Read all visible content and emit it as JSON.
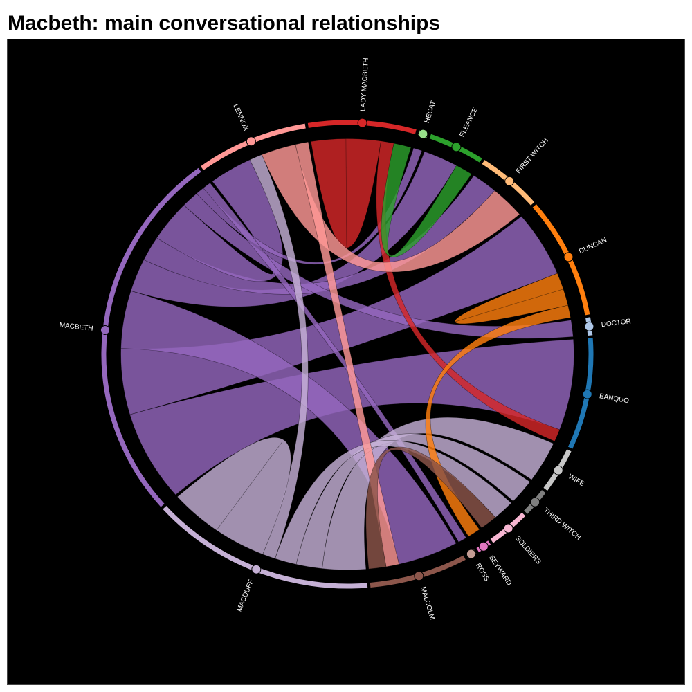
{
  "title": "Macbeth: main conversational relationships",
  "colors": {
    "background": "#000000",
    "title_text": "#000000",
    "label_text": "#ffffff"
  },
  "chart_data": {
    "type": "chord",
    "nodes": [
      {
        "id": "LENNOX",
        "label": "LENNOX",
        "color": "#ff9896"
      },
      {
        "id": "LADY MACBETH",
        "label": "LADY MACBETH",
        "color": "#d62728"
      },
      {
        "id": "HECAT",
        "label": "HECAT",
        "color": "#98df8a"
      },
      {
        "id": "FLEANCE",
        "label": "FLEANCE",
        "color": "#2ca02c"
      },
      {
        "id": "FIRST WITCH",
        "label": "FIRST WITCH",
        "color": "#ffbb78"
      },
      {
        "id": "DUNCAN",
        "label": "DUNCAN",
        "color": "#ff7f0e"
      },
      {
        "id": "DOCTOR",
        "label": "DOCTOR",
        "color": "#aec7e8"
      },
      {
        "id": "BANQUO",
        "label": "BANQUO",
        "color": "#1f77b4"
      },
      {
        "id": "WIFE",
        "label": "WIFE",
        "color": "#c7c7c7"
      },
      {
        "id": "THIRD WITCH",
        "label": "THIRD WITCH",
        "color": "#7f7f7f"
      },
      {
        "id": "SOLDIERS",
        "label": "SOLDIERS",
        "color": "#f7b6d2"
      },
      {
        "id": "SEYWARD",
        "label": "SEYWARD",
        "color": "#e377c2"
      },
      {
        "id": "ROSS",
        "label": "ROSS",
        "color": "#c49c94"
      },
      {
        "id": "MALCOLM",
        "label": "MALCOLM",
        "color": "#8c564b"
      },
      {
        "id": "MACDUFF",
        "label": "MACDUFF",
        "color": "#c5b0d5"
      },
      {
        "id": "MACBETH",
        "label": "MACBETH",
        "color": "#9467bd"
      }
    ],
    "links": [
      {
        "source": "MACBETH",
        "target": "BANQUO",
        "weight": 22
      },
      {
        "source": "MACBETH",
        "target": "DUNCAN",
        "weight": 16
      },
      {
        "source": "MACBETH",
        "target": "MALCOLM",
        "weight": 14
      },
      {
        "source": "MACBETH",
        "target": "FLEANCE",
        "weight": 8
      },
      {
        "source": "MACBETH",
        "target": "FIRST WITCH",
        "weight": 6
      },
      {
        "source": "MACBETH",
        "target": "LENNOX",
        "weight": 10
      },
      {
        "source": "MACBETH",
        "target": "DOCTOR",
        "weight": 4
      },
      {
        "source": "MACBETH",
        "target": "HECAT",
        "weight": 2
      },
      {
        "source": "MACBETH",
        "target": "ROSS",
        "weight": 2
      },
      {
        "source": "MACDUFF",
        "target": "WIFE",
        "weight": 10
      },
      {
        "source": "MACDUFF",
        "target": "THIRD WITCH",
        "weight": 6
      },
      {
        "source": "MACDUFF",
        "target": "SOLDIERS",
        "weight": 5
      },
      {
        "source": "MACDUFF",
        "target": "LENNOX",
        "weight": 3
      },
      {
        "source": "MACDUFF",
        "target": "MACDUFF",
        "weight": 12
      },
      {
        "source": "LADY MACBETH",
        "target": "LADY MACBETH",
        "weight": 8
      },
      {
        "source": "LADY MACBETH",
        "target": "BANQUO",
        "weight": 3
      },
      {
        "source": "LENNOX",
        "target": "FIRST WITCH",
        "weight": 8
      },
      {
        "source": "LENNOX",
        "target": "MALCOLM",
        "weight": 3
      },
      {
        "source": "DUNCAN",
        "target": "DUNCAN",
        "weight": 4
      },
      {
        "source": "DUNCAN",
        "target": "SEYWARD",
        "weight": 3
      },
      {
        "source": "MALCOLM",
        "target": "SOLDIERS",
        "weight": 4
      },
      {
        "source": "FLEANCE",
        "target": "LADY MACBETH",
        "weight": 4
      }
    ]
  }
}
